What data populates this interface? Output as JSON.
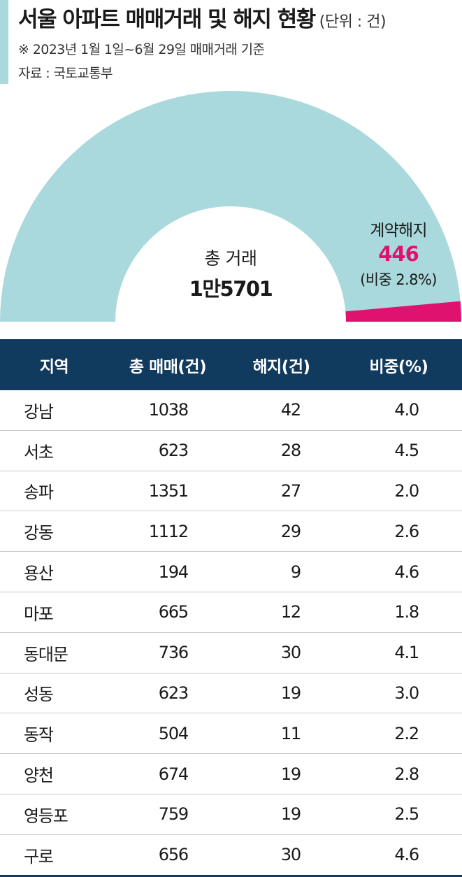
{
  "header": {
    "title": "서울 아파트 매매거래 및 해지 현황",
    "unit": "(단위 : 건)",
    "subtitle": "※ 2023년 1월 1일~6월 29일 매매거래 기준",
    "source": "자료 : 국토교통부"
  },
  "colors": {
    "donut_main": "#a9d9dd",
    "donut_cancel": "#e0126f",
    "table_header": "#103a5e",
    "accent_bar": "#a9d9dd"
  },
  "chart_data": [
    {
      "type": "pie",
      "variant": "half-donut",
      "total_label": "총 거래",
      "total_value_text": "1만5701",
      "total": 15701,
      "slices": [
        {
          "name": "계약해지",
          "value": 446,
          "value_text": "446",
          "share_text": "(비중 2.8%)",
          "share": 2.8
        },
        {
          "name": "",
          "value": 15255
        }
      ]
    },
    {
      "type": "table",
      "columns": [
        "지역",
        "총 매매(건)",
        "해지(건)",
        "비중(%)"
      ],
      "rows": [
        [
          "강남",
          "1038",
          "42",
          "4.0"
        ],
        [
          "서초",
          "623",
          "28",
          "4.5"
        ],
        [
          "송파",
          "1351",
          "27",
          "2.0"
        ],
        [
          "강동",
          "1112",
          "29",
          "2.6"
        ],
        [
          "용산",
          "194",
          "9",
          "4.6"
        ],
        [
          "마포",
          "665",
          "12",
          "1.8"
        ],
        [
          "동대문",
          "736",
          "30",
          "4.1"
        ],
        [
          "성동",
          "623",
          "19",
          "3.0"
        ],
        [
          "동작",
          "504",
          "11",
          "2.2"
        ],
        [
          "양천",
          "674",
          "19",
          "2.8"
        ],
        [
          "영등포",
          "759",
          "19",
          "2.5"
        ],
        [
          "구로",
          "656",
          "30",
          "4.6"
        ]
      ]
    }
  ]
}
